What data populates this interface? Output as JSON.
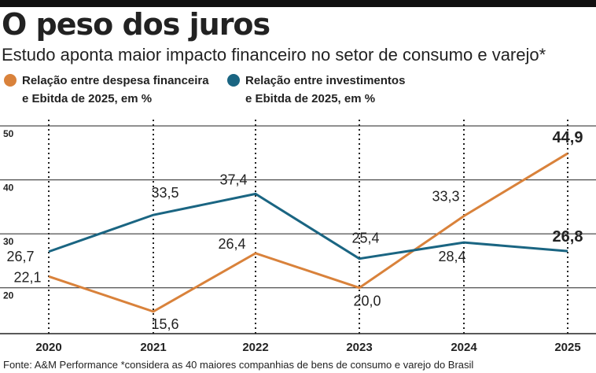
{
  "chart_data": {
    "type": "line",
    "title": "O peso dos juros",
    "subtitle": "Estudo aponta maior impacto financeiro no setor de consumo e varejo*",
    "categories": [
      "2020",
      "2021",
      "2022",
      "2023",
      "2024",
      "2025"
    ],
    "series": [
      {
        "name": "Relação entre despesa financeira e Ebitda de 2025, em %",
        "color": "#d9823b",
        "values": [
          22.1,
          15.6,
          26.4,
          20.0,
          33.3,
          44.9
        ],
        "value_labels": [
          "22,1",
          "15,6",
          "26,4",
          "20,0",
          "33,3",
          "44,9"
        ]
      },
      {
        "name": "Relação entre investimentos e Ebitda de 2025, em %",
        "color": "#1a6582",
        "values": [
          26.7,
          33.5,
          37.4,
          25.4,
          28.4,
          26.8
        ],
        "value_labels": [
          "26,7",
          "33,5",
          "37,4",
          "25,4",
          "28,4",
          "26,8"
        ]
      }
    ],
    "ylim": [
      11.5,
      50
    ],
    "yticks": [
      20,
      30,
      40,
      50
    ],
    "grid": true,
    "source": "Fonte: A&M Performance *considera as 40 maiores companhias de bens de consumo e varejo do Brasil"
  }
}
